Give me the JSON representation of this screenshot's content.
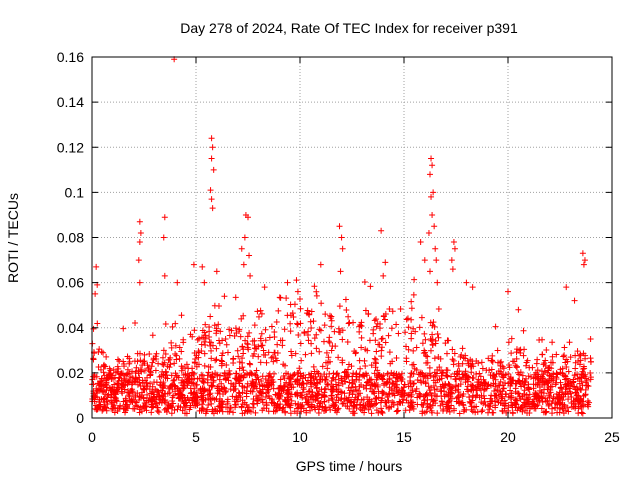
{
  "chart_data": {
    "type": "scatter",
    "title": "Day 278 of 2024, Rate Of TEC Index for receiver p391",
    "xlabel": "GPS time / hours",
    "ylabel": "ROTI / TECUs",
    "xlim": [
      0,
      25
    ],
    "ylim": [
      0,
      0.16
    ],
    "xticks": [
      0,
      5,
      10,
      15,
      20,
      25
    ],
    "yticks": [
      0,
      0.02,
      0.04,
      0.06,
      0.08,
      0.1,
      0.12,
      0.14,
      0.16
    ],
    "xtick_labels": [
      "0",
      "5",
      "10",
      "15",
      "20",
      "25"
    ],
    "ytick_labels": [
      "0",
      "0.02",
      "0.04",
      "0.06",
      "0.08",
      "0.1",
      "0.12",
      "0.14",
      "0.16"
    ],
    "grid": true,
    "marker": "+",
    "color": "#ff0000",
    "x_extent": [
      0,
      24
    ],
    "density_profile": {
      "hours": [
        0,
        1,
        2,
        3,
        4,
        5,
        6,
        7,
        8,
        9,
        10,
        11,
        12,
        13,
        14,
        15,
        16,
        17,
        18,
        19,
        20,
        21,
        22,
        23,
        24
      ],
      "typical_max": [
        0.035,
        0.025,
        0.032,
        0.03,
        0.032,
        0.04,
        0.042,
        0.04,
        0.038,
        0.045,
        0.05,
        0.048,
        0.05,
        0.045,
        0.05,
        0.045,
        0.048,
        0.035,
        0.03,
        0.028,
        0.032,
        0.03,
        0.028,
        0.028,
        0.03
      ]
    },
    "notable_points": [
      {
        "x": 0.2,
        "y": 0.067
      },
      {
        "x": 0.25,
        "y": 0.059
      },
      {
        "x": 0.15,
        "y": 0.055
      },
      {
        "x": 2.3,
        "y": 0.087
      },
      {
        "x": 2.35,
        "y": 0.082
      },
      {
        "x": 2.3,
        "y": 0.078
      },
      {
        "x": 2.25,
        "y": 0.07
      },
      {
        "x": 2.3,
        "y": 0.06
      },
      {
        "x": 3.5,
        "y": 0.089
      },
      {
        "x": 3.45,
        "y": 0.08
      },
      {
        "x": 3.5,
        "y": 0.063
      },
      {
        "x": 3.95,
        "y": 0.159
      },
      {
        "x": 4.1,
        "y": 0.06
      },
      {
        "x": 4.9,
        "y": 0.068
      },
      {
        "x": 5.3,
        "y": 0.067
      },
      {
        "x": 5.4,
        "y": 0.06
      },
      {
        "x": 5.75,
        "y": 0.124
      },
      {
        "x": 5.8,
        "y": 0.12
      },
      {
        "x": 5.75,
        "y": 0.115
      },
      {
        "x": 5.7,
        "y": 0.101
      },
      {
        "x": 5.75,
        "y": 0.097
      },
      {
        "x": 5.8,
        "y": 0.093
      },
      {
        "x": 5.85,
        "y": 0.11
      },
      {
        "x": 6.0,
        "y": 0.065
      },
      {
        "x": 7.4,
        "y": 0.09
      },
      {
        "x": 7.5,
        "y": 0.089
      },
      {
        "x": 7.35,
        "y": 0.08
      },
      {
        "x": 7.2,
        "y": 0.075
      },
      {
        "x": 7.3,
        "y": 0.068
      },
      {
        "x": 7.55,
        "y": 0.072
      },
      {
        "x": 7.6,
        "y": 0.063
      },
      {
        "x": 8.3,
        "y": 0.058
      },
      {
        "x": 9.4,
        "y": 0.06
      },
      {
        "x": 9.9,
        "y": 0.056
      },
      {
        "x": 11.0,
        "y": 0.068
      },
      {
        "x": 11.9,
        "y": 0.085
      },
      {
        "x": 12.0,
        "y": 0.08
      },
      {
        "x": 12.05,
        "y": 0.075
      },
      {
        "x": 11.95,
        "y": 0.065
      },
      {
        "x": 13.9,
        "y": 0.083
      },
      {
        "x": 14.1,
        "y": 0.069
      },
      {
        "x": 14.0,
        "y": 0.063
      },
      {
        "x": 15.8,
        "y": 0.078
      },
      {
        "x": 16.0,
        "y": 0.07
      },
      {
        "x": 16.3,
        "y": 0.115
      },
      {
        "x": 16.35,
        "y": 0.112
      },
      {
        "x": 16.25,
        "y": 0.108
      },
      {
        "x": 16.4,
        "y": 0.1
      },
      {
        "x": 16.3,
        "y": 0.098
      },
      {
        "x": 16.35,
        "y": 0.09
      },
      {
        "x": 16.45,
        "y": 0.085
      },
      {
        "x": 16.2,
        "y": 0.082
      },
      {
        "x": 16.5,
        "y": 0.075
      },
      {
        "x": 16.55,
        "y": 0.07
      },
      {
        "x": 16.25,
        "y": 0.065
      },
      {
        "x": 16.6,
        "y": 0.06
      },
      {
        "x": 17.4,
        "y": 0.078
      },
      {
        "x": 17.45,
        "y": 0.075
      },
      {
        "x": 17.3,
        "y": 0.07
      },
      {
        "x": 17.35,
        "y": 0.066
      },
      {
        "x": 18.3,
        "y": 0.058
      },
      {
        "x": 18.0,
        "y": 0.06
      },
      {
        "x": 20.0,
        "y": 0.056
      },
      {
        "x": 20.5,
        "y": 0.048
      },
      {
        "x": 23.6,
        "y": 0.073
      },
      {
        "x": 23.7,
        "y": 0.07
      },
      {
        "x": 23.65,
        "y": 0.068
      },
      {
        "x": 22.8,
        "y": 0.058
      },
      {
        "x": 23.2,
        "y": 0.052
      }
    ]
  }
}
